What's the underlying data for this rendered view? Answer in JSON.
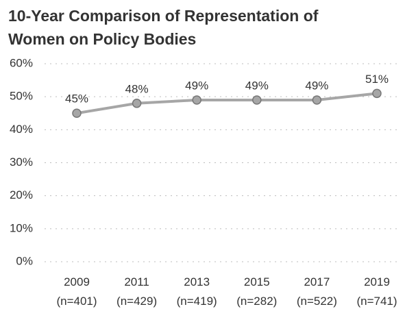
{
  "chart_data": {
    "type": "line",
    "title": "10-Year Comparison of Representation of Women on Policy Bodies",
    "categories": [
      "2009 (n=401)",
      "2011 (n=429)",
      "2013 (n=419)",
      "2015 (n=282)",
      "2017 (n=522)",
      "2019 (n=741)"
    ],
    "series": [
      {
        "color": "#a6a6a6",
        "values": [
          45,
          48,
          49,
          49,
          49,
          51
        ],
        "value_labels": [
          "45%",
          "48%",
          "49%",
          "49%",
          "49%",
          "51%"
        ]
      }
    ],
    "ylim": [
      0,
      60
    ],
    "yticks": [
      {
        "value": 0,
        "label": "0%"
      },
      {
        "value": 10,
        "label": "10%"
      },
      {
        "value": 20,
        "label": "20%"
      },
      {
        "value": 30,
        "label": "30%"
      },
      {
        "value": 40,
        "label": "40%"
      },
      {
        "value": 50,
        "label": "50%"
      },
      {
        "value": 60,
        "label": "60%"
      }
    ],
    "grid": true
  }
}
